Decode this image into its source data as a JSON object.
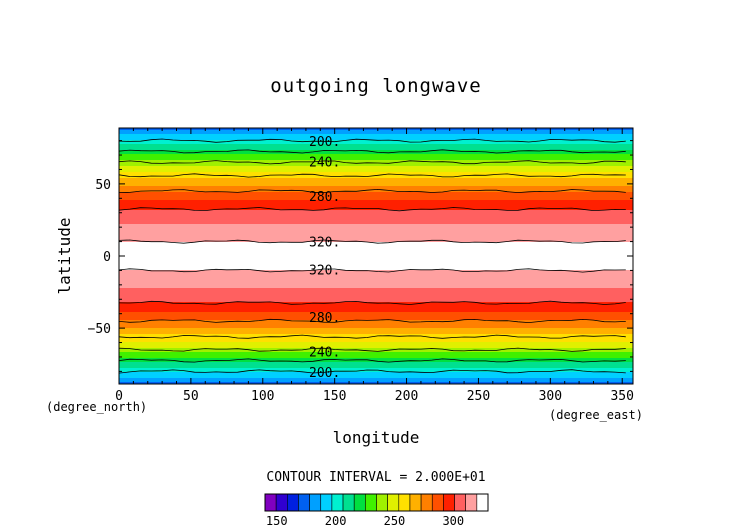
{
  "chart_data": {
    "type": "heatmap",
    "title": "outgoing longwave",
    "xlabel": "longitude",
    "ylabel": "latitude",
    "x_unit": "(degree_east)",
    "y_unit": "(degree_north)",
    "xlim": [
      0,
      357.5
    ],
    "ylim": [
      -88.75,
      88.75
    ],
    "x_ticks": [
      0,
      50,
      100,
      150,
      200,
      250,
      300,
      350
    ],
    "y_ticks": [
      -50,
      0,
      50
    ],
    "contour_interval_label": "CONTOUR INTERVAL = 2.000E+01",
    "contour_levels": [
      200,
      220,
      240,
      260,
      280,
      300,
      320
    ],
    "contour_labels": [
      {
        "value": "200.",
        "lon": 128,
        "lat": 79
      },
      {
        "value": "240.",
        "lon": 128,
        "lat": 65
      },
      {
        "value": "280.",
        "lon": 128,
        "lat": 41
      },
      {
        "value": "320.",
        "lon": 128,
        "lat": 9.5
      },
      {
        "value": "320.",
        "lon": 128,
        "lat": -10
      },
      {
        "value": "280.",
        "lon": 128,
        "lat": -43
      },
      {
        "value": "240.",
        "lon": 128,
        "lat": -67
      },
      {
        "value": "200.",
        "lon": 128,
        "lat": -81
      }
    ],
    "zonal_profile": {
      "lat": [
        -88.75,
        -85,
        -80,
        -75,
        -70,
        -65,
        -60,
        -55,
        -50,
        -45,
        -40,
        -35,
        -30,
        -25,
        -20,
        -15,
        -12,
        -10,
        -5,
        0,
        5,
        10,
        12,
        15,
        20,
        25,
        30,
        35,
        40,
        45,
        50,
        55,
        60,
        65,
        70,
        75,
        80,
        85,
        88.75
      ],
      "olr": [
        170,
        185,
        200,
        212,
        228,
        240,
        252,
        262,
        272,
        280,
        290,
        296,
        304,
        308,
        312,
        316,
        318,
        320,
        325,
        328,
        325,
        320,
        318,
        316,
        312,
        308,
        304,
        296,
        290,
        280,
        270,
        262,
        250,
        240,
        228,
        212,
        200,
        185,
        170
      ]
    },
    "colorbar": {
      "range": [
        140,
        320
      ],
      "ticks": [
        150,
        200,
        250,
        300
      ],
      "colors": [
        "#8000c0",
        "#3000d0",
        "#0020e0",
        "#0060f0",
        "#00a0ff",
        "#00d0ff",
        "#00f0d0",
        "#00e090",
        "#00e040",
        "#40f000",
        "#a0f000",
        "#e0f000",
        "#ffe000",
        "#ffb000",
        "#ff8000",
        "#ff5000",
        "#ff2000",
        "#ff6060",
        "#ffa0a0",
        "#ffffff"
      ]
    }
  }
}
